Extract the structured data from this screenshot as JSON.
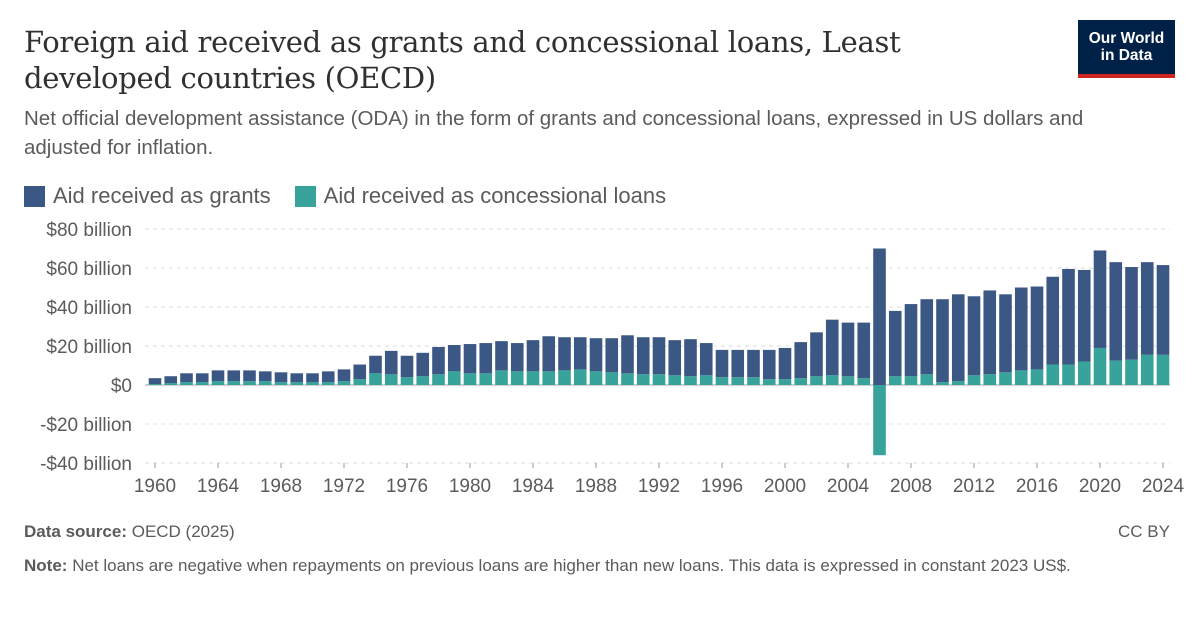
{
  "header": {
    "title": "Foreign aid received as grants and concessional loans, Least developed countries (OECD)",
    "subtitle": "Net official development assistance (ODA) in the form of grants and concessional loans, expressed in US dollars and adjusted for inflation."
  },
  "logo": {
    "line1": "Our World",
    "line2": "in Data"
  },
  "colors": {
    "grants": "#3b5784",
    "loans": "#37a39a",
    "grid": "#dddddd",
    "logo_bg": "#002147",
    "logo_accent": "#ce261e"
  },
  "footer": {
    "source_label": "Data source:",
    "source_text": "OECD (2025)",
    "license": "CC BY",
    "note_label": "Note:",
    "note_text": "Net loans are negative when repayments on previous loans are higher than new loans. This data is expressed in constant 2023 US$."
  },
  "chart_data": {
    "type": "bar",
    "stacked": true,
    "x": [
      1960,
      1961,
      1962,
      1963,
      1964,
      1965,
      1966,
      1967,
      1968,
      1969,
      1970,
      1971,
      1972,
      1973,
      1974,
      1975,
      1976,
      1977,
      1978,
      1979,
      1980,
      1981,
      1982,
      1983,
      1984,
      1985,
      1986,
      1987,
      1988,
      1989,
      1990,
      1991,
      1992,
      1993,
      1994,
      1995,
      1996,
      1997,
      1998,
      1999,
      2000,
      2001,
      2002,
      2003,
      2004,
      2005,
      2006,
      2007,
      2008,
      2009,
      2010,
      2011,
      2012,
      2013,
      2014,
      2015,
      2016,
      2017,
      2018,
      2019,
      2020,
      2021,
      2022,
      2023,
      2024
    ],
    "series": [
      {
        "name": "Aid received as grants",
        "values": [
          3,
          3.5,
          4.5,
          4.5,
          5.5,
          5.5,
          5.5,
          5,
          5,
          4.5,
          4.5,
          5.5,
          6,
          7.5,
          9,
          12,
          11,
          12,
          14,
          13.5,
          15,
          15.5,
          15,
          14.5,
          16,
          18,
          17,
          16.5,
          17,
          17.5,
          19.5,
          19,
          19,
          18,
          19,
          16.5,
          14,
          14,
          14,
          15,
          16,
          18.5,
          22.5,
          28.5,
          27.5,
          28.5,
          70,
          33.5,
          37,
          38.5,
          42.5,
          44.5,
          40.5,
          43,
          40,
          42.5,
          42.5,
          45,
          49,
          47,
          50,
          50.5,
          47.5,
          47.5,
          46
        ]
      },
      {
        "name": "Aid received as concessional loans",
        "values": [
          0.5,
          1,
          1.5,
          1.5,
          2,
          2,
          2,
          2,
          1.5,
          1.5,
          1.5,
          1.5,
          2,
          3,
          6,
          5.5,
          4,
          4.5,
          5.5,
          7,
          6,
          6,
          7.5,
          7,
          7,
          7,
          7.5,
          8,
          7,
          6.5,
          6,
          5.5,
          5.5,
          5,
          4.5,
          5,
          4,
          4,
          4,
          3,
          3,
          3.5,
          4.5,
          5,
          4.5,
          3.5,
          -36,
          4.5,
          4.5,
          5.5,
          1.5,
          2,
          5,
          5.5,
          6.5,
          7.5,
          8,
          10.5,
          10.5,
          12,
          19,
          12.5,
          13,
          15.5,
          15.5
        ]
      }
    ],
    "ylim": [
      -40,
      80
    ],
    "yticks": [
      80,
      60,
      40,
      20,
      0,
      -20,
      -40
    ],
    "ytick_labels": [
      "$80 billion",
      "$60 billion",
      "$40 billion",
      "$20 billion",
      "$0",
      "-$20 billion",
      "-$40 billion"
    ],
    "xticks": [
      1960,
      1964,
      1968,
      1972,
      1976,
      1980,
      1984,
      1988,
      1992,
      1996,
      2000,
      2004,
      2008,
      2012,
      2016,
      2020,
      2024
    ],
    "xtick_labels": [
      "1960",
      "1964",
      "1968",
      "1972",
      "1976",
      "1980",
      "1984",
      "1988",
      "1992",
      "1996",
      "2000",
      "2004",
      "2008",
      "2012",
      "2016",
      "2020",
      "2024"
    ],
    "legend": [
      "Aid received as grants",
      "Aid received as concessional loans"
    ],
    "legend_position": "top-left",
    "grid": true
  }
}
